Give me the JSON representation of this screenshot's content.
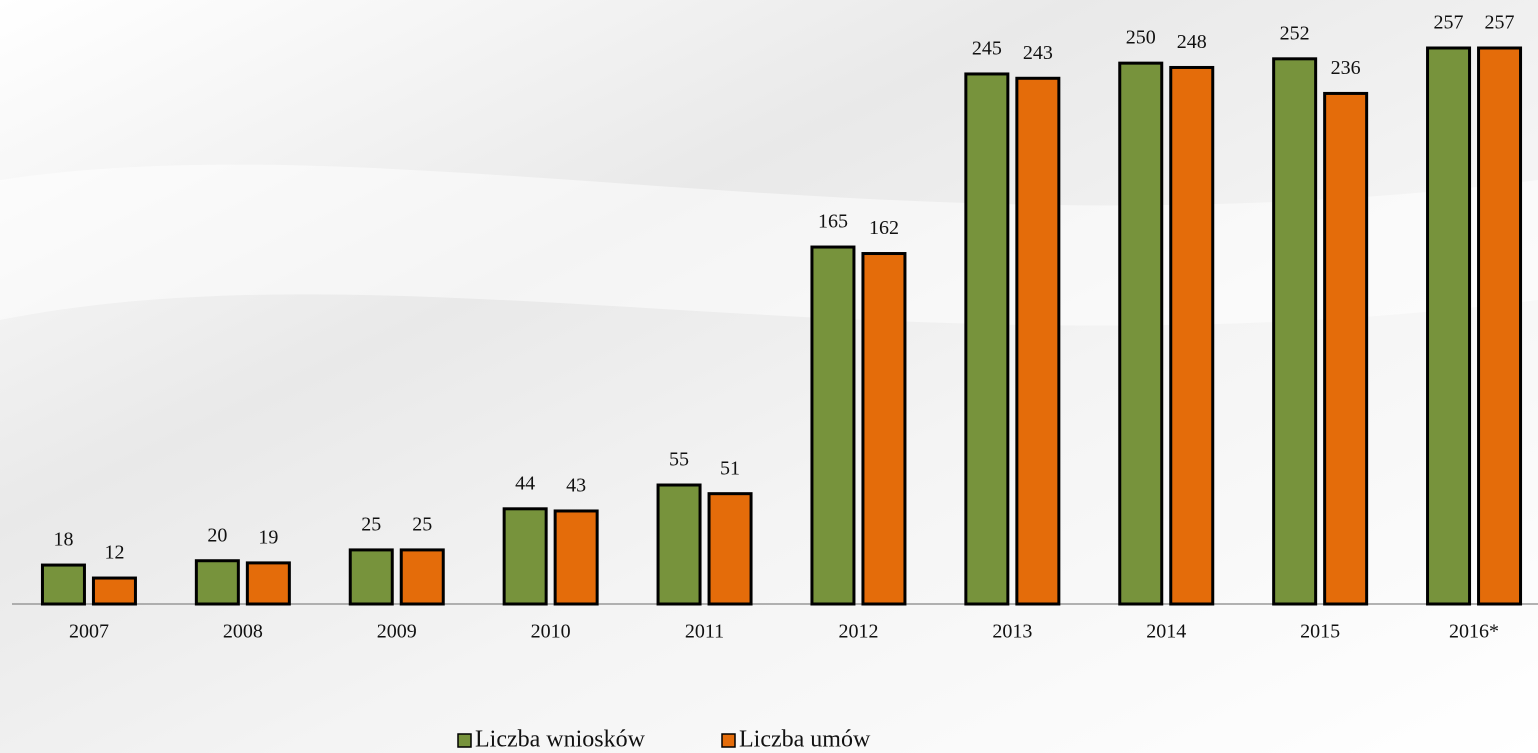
{
  "chart_data": {
    "type": "bar",
    "categories": [
      "2007",
      "2008",
      "2009",
      "2010",
      "2011",
      "2012",
      "2013",
      "2014",
      "2015",
      "2016*"
    ],
    "series": [
      {
        "name": "Liczba wniosków",
        "color": "#77933c",
        "values": [
          18,
          20,
          25,
          44,
          55,
          165,
          245,
          250,
          252,
          257
        ]
      },
      {
        "name": "Liczba umów",
        "color": "#e46c0a",
        "values": [
          12,
          19,
          25,
          43,
          51,
          162,
          243,
          248,
          236,
          257
        ]
      }
    ],
    "legend": "bottom"
  }
}
